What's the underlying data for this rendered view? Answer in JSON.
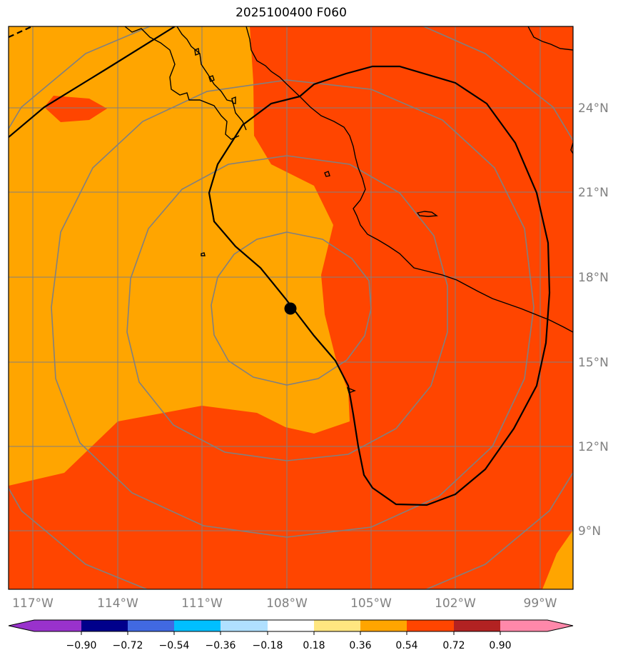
{
  "title": "2025100400 F060",
  "map": {
    "lon_range": [
      -118,
      -97
    ],
    "lat_range": [
      7,
      27
    ],
    "lon_labels": [
      "117°W",
      "114°W",
      "111°W",
      "108°W",
      "105°W",
      "102°W",
      "99°W"
    ],
    "lat_labels": [
      "24°N",
      "21°N",
      "18°N",
      "15°N",
      "12°N",
      "9°N"
    ],
    "storm_center": {
      "lon": -107.9,
      "lat": 16.9
    },
    "colors": {
      "orange": "#ffa500",
      "red_orange": "#ff4500",
      "grid": "#808080",
      "coast": "#000000"
    }
  },
  "colorbar": {
    "ticks": [
      "−0.90",
      "−0.72",
      "−0.54",
      "−0.36",
      "−0.18",
      "0.18",
      "0.36",
      "0.54",
      "0.72",
      "0.90"
    ],
    "colors": [
      "#9932cc",
      "#00008b",
      "#4169e1",
      "#00bfff",
      "#b0e0ff",
      "#ffffff",
      "#ffe680",
      "#ffa500",
      "#ff4500",
      "#b22222",
      "#ff88aa"
    ]
  }
}
